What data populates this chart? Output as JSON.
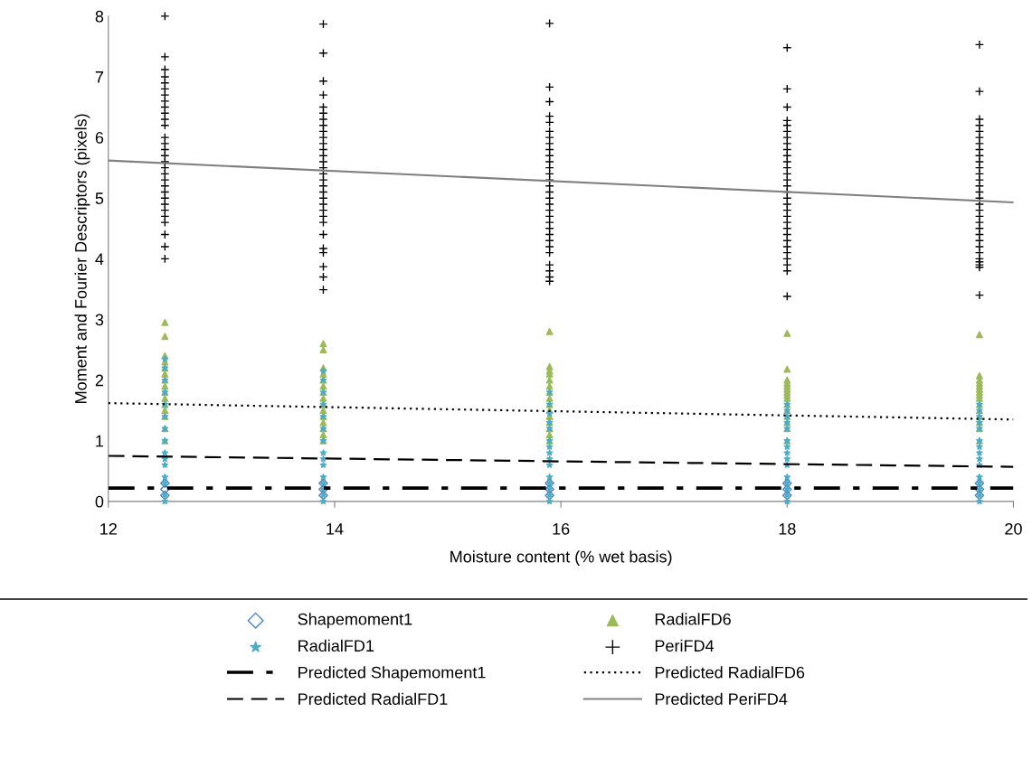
{
  "chart_data": {
    "type": "scatter",
    "xlabel": "Moisture content (% wet basis)",
    "ylabel": "Moment and Fourier Descriptors (pixels)",
    "xlim": [
      12,
      20
    ],
    "xticks": [
      12,
      14,
      16,
      18,
      20
    ],
    "ylim": [
      0,
      8
    ],
    "yticks": [
      0,
      1,
      2,
      3,
      4,
      5,
      6,
      7,
      8
    ],
    "grid": false,
    "legend": "bottom",
    "series": [
      {
        "name": "Shapemoment1",
        "marker": "diamond",
        "color": "#4f81bd",
        "x": [
          12.5,
          12.5,
          12.5,
          13.9,
          13.9,
          13.9,
          15.9,
          15.9,
          15.9,
          18.0,
          18.0,
          18.0,
          19.7,
          19.7,
          19.7
        ],
        "values": [
          0.3,
          0.2,
          0.1,
          0.3,
          0.2,
          0.1,
          0.3,
          0.2,
          0.1,
          0.3,
          0.2,
          0.1,
          0.3,
          0.2,
          0.1
        ]
      },
      {
        "name": "RadialFD6",
        "marker": "triangle",
        "color": "#9bbb59",
        "x": [
          12.5,
          12.5,
          12.5,
          12.5,
          12.5,
          12.5,
          12.5,
          12.5,
          12.5,
          12.5,
          12.5,
          12.5,
          12.5,
          12.5,
          12.5,
          13.9,
          13.9,
          13.9,
          13.9,
          13.9,
          13.9,
          13.9,
          13.9,
          13.9,
          13.9,
          13.9,
          13.9,
          13.9,
          13.9,
          13.9,
          15.9,
          15.9,
          15.9,
          15.9,
          15.9,
          15.9,
          15.9,
          15.9,
          15.9,
          15.9,
          15.9,
          15.9,
          15.9,
          15.9,
          15.9,
          18.0,
          18.0,
          18.0,
          18.0,
          18.0,
          18.0,
          18.0,
          18.0,
          18.0,
          18.0,
          18.0,
          18.0,
          18.0,
          18.0,
          18.0,
          19.7,
          19.7,
          19.7,
          19.7,
          19.7,
          19.7,
          19.7,
          19.7,
          19.7,
          19.7,
          19.7,
          19.7,
          19.7,
          19.7,
          19.7
        ],
        "values": [
          2.95,
          2.72,
          2.4,
          2.3,
          2.2,
          2.1,
          2.0,
          1.9,
          1.8,
          1.7,
          1.6,
          1.5,
          1.4,
          1.2,
          1.0,
          2.6,
          2.5,
          2.2,
          2.1,
          2.0,
          1.9,
          1.8,
          1.7,
          1.6,
          1.5,
          1.4,
          1.3,
          1.2,
          1.1,
          1.0,
          2.8,
          2.22,
          2.15,
          2.1,
          2.0,
          1.9,
          1.8,
          1.7,
          1.6,
          1.5,
          1.4,
          1.3,
          1.2,
          1.1,
          1.0,
          2.77,
          2.18,
          2.0,
          1.95,
          1.9,
          1.85,
          1.8,
          1.75,
          1.7,
          1.6,
          1.5,
          1.4,
          1.3,
          1.2,
          1.0,
          2.75,
          2.07,
          2.0,
          1.95,
          1.9,
          1.85,
          1.8,
          1.75,
          1.7,
          1.6,
          1.5,
          1.4,
          1.3,
          1.2,
          1.0
        ]
      },
      {
        "name": "RadialFD1",
        "marker": "star",
        "color": "#4bacc6",
        "x": [
          12.5,
          12.5,
          12.5,
          12.5,
          12.5,
          12.5,
          12.5,
          12.5,
          12.5,
          12.5,
          12.5,
          12.5,
          12.5,
          12.5,
          12.5,
          13.9,
          13.9,
          13.9,
          13.9,
          13.9,
          13.9,
          13.9,
          13.9,
          13.9,
          13.9,
          13.9,
          13.9,
          13.9,
          13.9,
          13.9,
          15.9,
          15.9,
          15.9,
          15.9,
          15.9,
          15.9,
          15.9,
          15.9,
          15.9,
          15.9,
          15.9,
          15.9,
          15.9,
          15.9,
          15.9,
          18.0,
          18.0,
          18.0,
          18.0,
          18.0,
          18.0,
          18.0,
          18.0,
          18.0,
          18.0,
          18.0,
          18.0,
          18.0,
          18.0,
          18.0,
          19.7,
          19.7,
          19.7,
          19.7,
          19.7,
          19.7,
          19.7,
          19.7,
          19.7,
          19.7,
          19.7,
          19.7,
          19.7,
          19.7,
          19.7
        ],
        "values": [
          2.35,
          2.2,
          2.0,
          1.8,
          1.6,
          1.4,
          1.2,
          1.0,
          0.8,
          0.7,
          0.6,
          0.4,
          0.3,
          0.1,
          0.0,
          2.15,
          2.0,
          1.8,
          1.6,
          1.4,
          1.2,
          1.0,
          0.8,
          0.7,
          0.6,
          0.4,
          0.3,
          0.2,
          0.1,
          0.0,
          1.8,
          1.6,
          1.45,
          1.3,
          1.2,
          1.0,
          0.9,
          0.8,
          0.7,
          0.6,
          0.4,
          0.3,
          0.2,
          0.1,
          0.0,
          1.6,
          1.5,
          1.4,
          1.3,
          1.2,
          1.0,
          0.9,
          0.8,
          0.7,
          0.6,
          0.4,
          0.3,
          0.2,
          0.1,
          0.0,
          1.6,
          1.5,
          1.4,
          1.3,
          1.2,
          1.0,
          0.9,
          0.8,
          0.7,
          0.6,
          0.4,
          0.3,
          0.2,
          0.1,
          0.0
        ]
      },
      {
        "name": "PeriFD4",
        "marker": "cross",
        "color": "#000000",
        "x": [
          12.5,
          12.5,
          12.5,
          12.5,
          12.5,
          12.5,
          12.5,
          12.5,
          12.5,
          12.5,
          12.5,
          12.5,
          12.5,
          12.5,
          12.5,
          12.5,
          12.5,
          12.5,
          12.5,
          12.5,
          12.5,
          12.5,
          12.5,
          12.5,
          12.5,
          12.5,
          12.5,
          12.5,
          12.5,
          12.5,
          13.9,
          13.9,
          13.9,
          13.9,
          13.9,
          13.9,
          13.9,
          13.9,
          13.9,
          13.9,
          13.9,
          13.9,
          13.9,
          13.9,
          13.9,
          13.9,
          13.9,
          13.9,
          13.9,
          13.9,
          13.9,
          13.9,
          13.9,
          13.9,
          13.9,
          13.9,
          13.9,
          13.9,
          13.9,
          13.9,
          15.9,
          15.9,
          15.9,
          15.9,
          15.9,
          15.9,
          15.9,
          15.9,
          15.9,
          15.9,
          15.9,
          15.9,
          15.9,
          15.9,
          15.9,
          15.9,
          15.9,
          15.9,
          15.9,
          15.9,
          15.9,
          15.9,
          15.9,
          15.9,
          15.9,
          15.9,
          15.9,
          15.9,
          15.9,
          15.9,
          18.0,
          18.0,
          18.0,
          18.0,
          18.0,
          18.0,
          18.0,
          18.0,
          18.0,
          18.0,
          18.0,
          18.0,
          18.0,
          18.0,
          18.0,
          18.0,
          18.0,
          18.0,
          18.0,
          18.0,
          18.0,
          18.0,
          18.0,
          18.0,
          18.0,
          18.0,
          18.0,
          18.0,
          18.0,
          18.0,
          19.7,
          19.7,
          19.7,
          19.7,
          19.7,
          19.7,
          19.7,
          19.7,
          19.7,
          19.7,
          19.7,
          19.7,
          19.7,
          19.7,
          19.7,
          19.7,
          19.7,
          19.7,
          19.7,
          19.7,
          19.7,
          19.7,
          19.7,
          19.7,
          19.7,
          19.7,
          19.7,
          19.7,
          19.7,
          19.7
        ],
        "values": [
          8.0,
          7.33,
          7.12,
          7.0,
          6.9,
          6.8,
          6.7,
          6.6,
          6.5,
          6.4,
          6.3,
          6.2,
          6.0,
          5.9,
          5.8,
          5.7,
          5.6,
          5.5,
          5.4,
          5.3,
          5.2,
          5.1,
          5.0,
          4.9,
          4.8,
          4.7,
          4.6,
          4.4,
          4.2,
          4.0,
          7.87,
          7.39,
          6.93,
          6.7,
          6.5,
          6.4,
          6.3,
          6.2,
          6.1,
          6.0,
          5.9,
          5.8,
          5.7,
          5.6,
          5.5,
          5.4,
          5.3,
          5.2,
          5.1,
          5.0,
          4.9,
          4.8,
          4.7,
          4.6,
          4.4,
          4.17,
          4.1,
          3.87,
          3.7,
          3.49,
          7.88,
          6.83,
          6.59,
          6.35,
          6.25,
          6.1,
          6.0,
          5.9,
          5.8,
          5.7,
          5.6,
          5.5,
          5.4,
          5.3,
          5.2,
          5.1,
          5.0,
          4.9,
          4.8,
          4.7,
          4.6,
          4.5,
          4.4,
          4.3,
          4.2,
          4.1,
          3.9,
          3.8,
          3.7,
          3.63,
          7.48,
          6.8,
          6.5,
          6.28,
          6.2,
          6.1,
          6.0,
          5.9,
          5.8,
          5.7,
          5.6,
          5.5,
          5.4,
          5.3,
          5.2,
          5.1,
          5.0,
          4.9,
          4.8,
          4.7,
          4.6,
          4.5,
          4.4,
          4.3,
          4.2,
          4.1,
          4.0,
          3.9,
          3.8,
          3.38,
          7.53,
          6.76,
          6.3,
          6.2,
          6.1,
          6.0,
          5.9,
          5.8,
          5.7,
          5.6,
          5.5,
          5.4,
          5.3,
          5.2,
          5.1,
          5.0,
          4.9,
          4.8,
          4.7,
          4.6,
          4.5,
          4.4,
          4.3,
          4.2,
          4.1,
          4.0,
          3.95,
          3.9,
          3.86,
          3.4
        ]
      },
      {
        "name": "Predicted Shapemoment1",
        "type": "line",
        "marker": "none",
        "line_style": "dashdot",
        "color": "#000000",
        "x": [
          12,
          20
        ],
        "values": [
          0.22,
          0.22
        ]
      },
      {
        "name": "Predicted RadialFD6",
        "type": "line",
        "marker": "none",
        "line_style": "dotted",
        "color": "#000000",
        "x": [
          12,
          20
        ],
        "values": [
          1.62,
          1.35
        ]
      },
      {
        "name": "Predicted RadialFD1",
        "type": "line",
        "marker": "none",
        "line_style": "dashed",
        "color": "#000000",
        "x": [
          12,
          20
        ],
        "values": [
          0.75,
          0.57
        ]
      },
      {
        "name": "Predicted PeriFD4",
        "type": "line",
        "marker": "none",
        "line_style": "solid",
        "color": "#808080",
        "x": [
          12,
          20
        ],
        "values": [
          5.62,
          4.93
        ]
      }
    ]
  }
}
